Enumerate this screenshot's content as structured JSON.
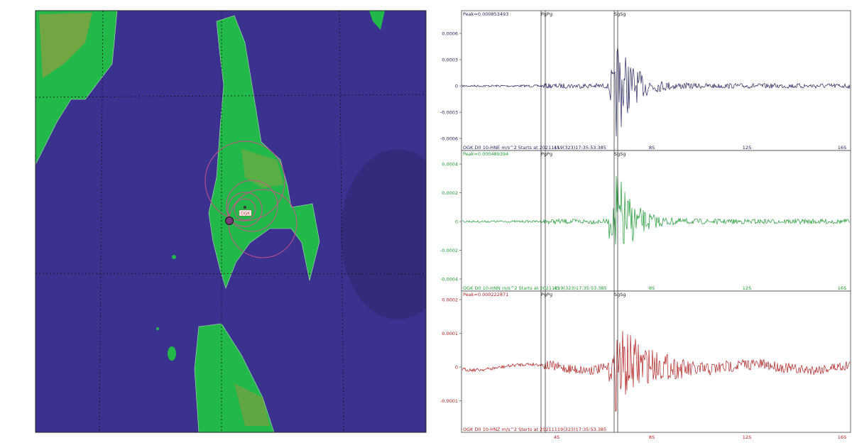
{
  "map": {
    "station_label": "OGK"
  },
  "panels": [
    {
      "peak": "Peak=0.000853493",
      "yticks": [
        "0.0006",
        "0.0003",
        "0",
        "-0.0003",
        "-0.0006"
      ],
      "caption": "OGK D0 10-HNE  m/s^2 Starts at 20211119(323)17:35:53.385",
      "xticks": [
        "4S",
        "8S",
        "12S",
        "16S"
      ],
      "phases": [
        "PgPg",
        "SgSg"
      ]
    },
    {
      "peak": "Peak=0.000489394",
      "yticks": [
        "0.0004",
        "0.0002",
        "0",
        "-0.0002",
        "-0.0004"
      ],
      "caption": "OGK D0 10-HNN  m/s^2 Starts at 20211119(323)17:35:53.385",
      "xticks": [
        "4S",
        "8S",
        "12S",
        "16S"
      ],
      "phases": [
        "PgPg",
        "SgSg"
      ]
    },
    {
      "peak": "Peak=0.000222871",
      "yticks": [
        "0.0002",
        "0.0001",
        "0",
        "-0.0001"
      ],
      "caption": "OGK D0 10-HNZ  m/s^2 Starts at 20211119(323)17:35:53.385",
      "xticks": [
        "4S",
        "8S",
        "12S",
        "16S"
      ],
      "phases": [
        "PgPg",
        "SgSg"
      ]
    }
  ]
}
